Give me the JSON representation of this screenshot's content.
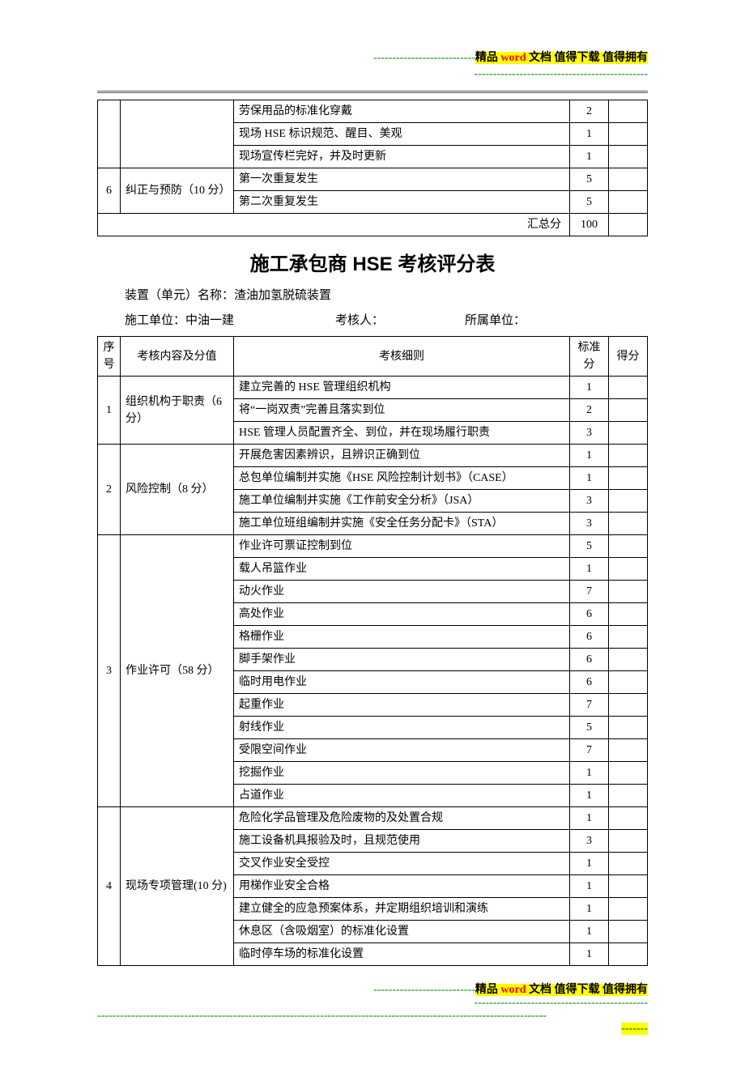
{
  "banner_top": {
    "dashes": "---------------------------",
    "text_parts": [
      "精品 ",
      "word ",
      "文档  值得下载  值得拥有"
    ]
  },
  "banner_sub_dashes": "----------------------------------------------",
  "top_table": {
    "rows": [
      {
        "detail": "劳保用品的标准化穿戴",
        "std": "2"
      },
      {
        "detail": "现场 HSE 标识规范、醒目、美观",
        "std": "1"
      },
      {
        "detail": "现场宣传栏完好，并及时更新",
        "std": "1"
      }
    ],
    "section6_no": "6",
    "section6_cat": "纠正与预防（10 分）",
    "section6_rows": [
      {
        "detail": "第一次重复发生",
        "std": "5"
      },
      {
        "detail": "第二次重复发生",
        "std": "5"
      }
    ],
    "sum_label": "汇总分",
    "sum_value": "100"
  },
  "title": "施工承包商 HSE 考核评分表",
  "meta": {
    "unit_label": "装置（单元）名称：",
    "unit_value": "渣油加氢脱硫装置",
    "construction_label": "施工单位：",
    "construction_value": "中油一建",
    "assessor_label": "考核人：",
    "dept_label": "所属单位："
  },
  "main_table": {
    "head": {
      "no": "序号",
      "cat": "考核内容及分值",
      "det": "考核细则",
      "std": "标准分",
      "score": "得分"
    },
    "sections": [
      {
        "no": "1",
        "cat": "组织机构于职责（6 分）",
        "rows": [
          {
            "detail": "建立完善的 HSE 管理组织机构",
            "std": "1"
          },
          {
            "detail": "将“一岗双责”完善且落实到位",
            "std": "2"
          },
          {
            "detail": "HSE 管理人员配置齐全、到位，并在现场履行职责",
            "std": "3"
          }
        ]
      },
      {
        "no": "2",
        "cat": "风险控制（8 分）",
        "rows": [
          {
            "detail": "开展危害因素辨识，且辨识正确到位",
            "std": "1"
          },
          {
            "detail": "总包单位编制并实施《HSE 风险控制计划书》（CASE）",
            "std": "1"
          },
          {
            "detail": "施工单位编制并实施《工作前安全分析》（JSA）",
            "std": "3"
          },
          {
            "detail": "施工单位班组编制并实施《安全任务分配卡》（STA）",
            "std": "3"
          }
        ]
      },
      {
        "no": "3",
        "cat": "作业许可（58 分）",
        "rows": [
          {
            "detail": "作业许可票证控制到位",
            "std": "5"
          },
          {
            "detail": "载人吊篮作业",
            "std": "1"
          },
          {
            "detail": "动火作业",
            "std": "7"
          },
          {
            "detail": "高处作业",
            "std": "6"
          },
          {
            "detail": "格栅作业",
            "std": "6"
          },
          {
            "detail": "脚手架作业",
            "std": "6"
          },
          {
            "detail": "临时用电作业",
            "std": "6"
          },
          {
            "detail": "起重作业",
            "std": "7"
          },
          {
            "detail": "射线作业",
            "std": "5"
          },
          {
            "detail": "受限空间作业",
            "std": "7"
          },
          {
            "detail": "挖掘作业",
            "std": "1"
          },
          {
            "detail": "占道作业",
            "std": "1"
          }
        ]
      },
      {
        "no": "4",
        "cat": "现场专项管理(10 分)",
        "rows": [
          {
            "detail": "危险化学品管理及危险废物的及处置合规",
            "std": "1"
          },
          {
            "detail": "施工设备机具报验及时，且规范使用",
            "std": "3"
          },
          {
            "detail": "交叉作业安全受控",
            "std": "1"
          },
          {
            "detail": "用梯作业安全合格",
            "std": "1"
          },
          {
            "detail": "建立健全的应急预案体系，并定期组织培训和演练",
            "std": "1"
          },
          {
            "detail": "休息区（含吸烟室）的标准化设置",
            "std": "1"
          },
          {
            "detail": "临时停车场的标准化设置",
            "std": "1"
          }
        ]
      }
    ]
  },
  "footer": {
    "line_green_long": "-----------------------------------------------------------------------------------------------------------------------",
    "trailing": "-------"
  }
}
